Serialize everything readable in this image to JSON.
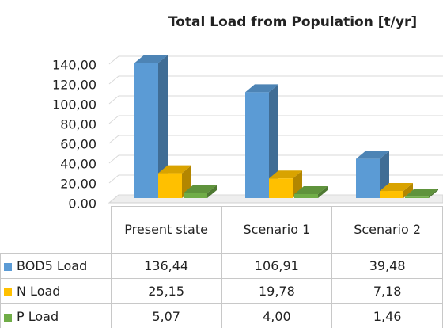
{
  "chart_data": {
    "type": "bar",
    "title": "Total Load from Population  [t/yr]",
    "categories": [
      "Present state",
      "Scenario 1",
      "Scenario 2"
    ],
    "series": [
      {
        "name": "BOD5 Load",
        "color": "#5b9bd5",
        "values": [
          136.44,
          106.91,
          39.48
        ],
        "value_labels": [
          "136,44",
          "106,91",
          "39,48"
        ]
      },
      {
        "name": "N Load",
        "color": "#ffc000",
        "values": [
          25.15,
          19.78,
          7.18
        ],
        "value_labels": [
          "25,15",
          "19,78",
          "7,18"
        ]
      },
      {
        "name": "P Load",
        "color": "#70ad47",
        "values": [
          5.07,
          4.0,
          1.46
        ],
        "value_labels": [
          "5,07",
          "4,00",
          "1,46"
        ]
      }
    ],
    "ylim": [
      0,
      140
    ],
    "yticks": [
      {
        "value": 0,
        "label": "0,00"
      },
      {
        "value": 20,
        "label": "20,00"
      },
      {
        "value": 40,
        "label": "40,00"
      },
      {
        "value": 60,
        "label": "60,00"
      },
      {
        "value": 80,
        "label": "80,00"
      },
      {
        "value": 100,
        "label": "100,00"
      },
      {
        "value": 120,
        "label": "120,00"
      },
      {
        "value": 140,
        "label": "140,00"
      }
    ],
    "grid": true
  }
}
